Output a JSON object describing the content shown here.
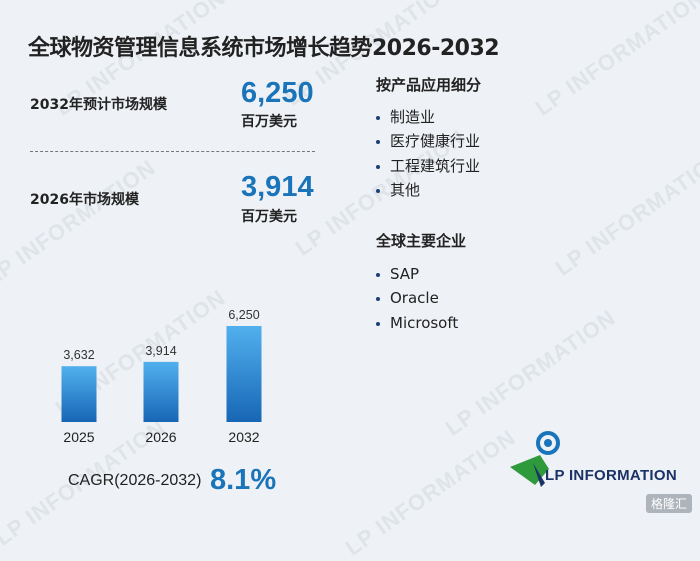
{
  "watermark": {
    "text": "LP INFORMATION"
  },
  "title": "全球物资管理信息系统市场增长趋势2026-2032",
  "metrics": {
    "forecast": {
      "label": "2032年预计市场规模",
      "value": "6,250",
      "unit": "百万美元"
    },
    "base": {
      "label": "2026年市场规模",
      "value": "3,914",
      "unit": "百万美元"
    }
  },
  "chart_data": {
    "type": "bar",
    "categories": [
      "2025",
      "2026",
      "2032"
    ],
    "values": [
      3632,
      3914,
      6250
    ],
    "data_labels": [
      "3,632",
      "3,914",
      "6,250"
    ],
    "title": "",
    "xlabel": "",
    "ylabel": "",
    "ylim": [
      0,
      6250
    ],
    "grid": false,
    "bar_color_top": "#52b0ee",
    "bar_color_bottom": "#1766b5"
  },
  "cagr": {
    "label": "CAGR(2026-2032)",
    "value": "8.1%"
  },
  "segments": {
    "title": "按产品应用细分",
    "items": [
      "制造业",
      "医疗健康行业",
      "工程建筑行业",
      "其他"
    ]
  },
  "companies": {
    "title": "全球主要企业",
    "items": [
      "SAP",
      "Oracle",
      "Microsoft"
    ]
  },
  "logo": {
    "text": "LP INFORMATION",
    "icon": "lp-information-logo-icon"
  },
  "corner_badge": {
    "text": "格隆汇"
  },
  "colors": {
    "accent": "#1a74b9",
    "background": "#eef1f5",
    "logo_navy": "#1a3266",
    "logo_green": "#2e9a3c"
  }
}
